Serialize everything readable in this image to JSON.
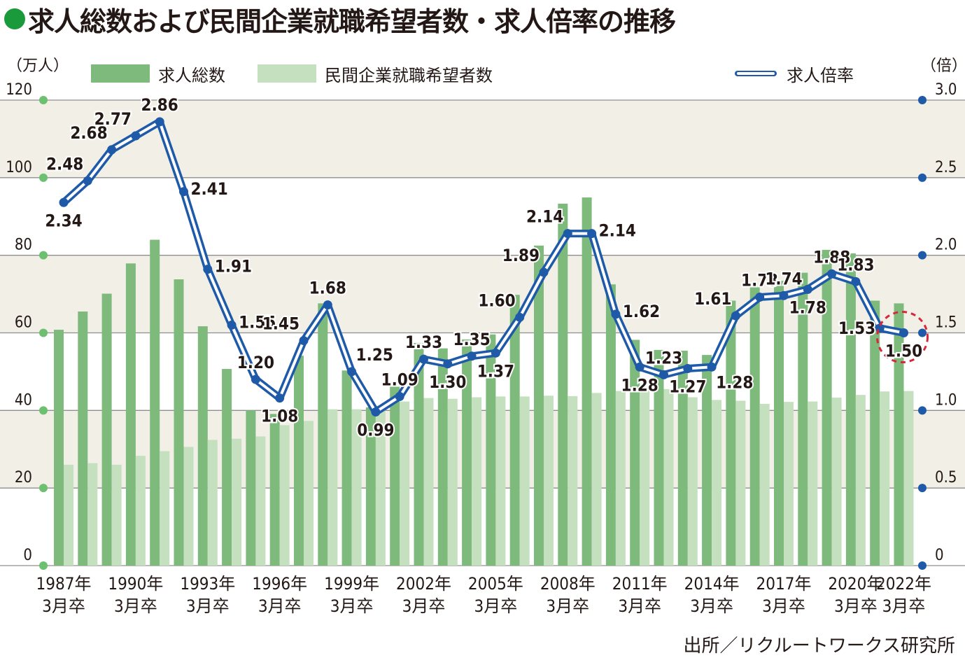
{
  "title": "求人総数および民間企業就職希望者数・求人倍率の推移",
  "unit_left": "（万人）",
  "unit_right": "（倍）",
  "legend": {
    "total": "求人総数",
    "seekers": "民間企業就職希望者数",
    "ratio": "求人倍率"
  },
  "source": "出所／リクルートワークス研究所",
  "colors": {
    "total": "#7fba7d",
    "seekers": "#c5e0bf",
    "ratio": "#1e5aa8",
    "band": "#f1efe6",
    "highlight": "#d6273b"
  },
  "chart_data": {
    "type": "bar",
    "x_tick_labels": [
      [
        "1987年",
        "3月卒"
      ],
      [
        "1990年",
        "3月卒"
      ],
      [
        "1993年",
        "3月卒"
      ],
      [
        "1996年",
        "3月卒"
      ],
      [
        "1999年",
        "3月卒"
      ],
      [
        "2002年",
        "3月卒"
      ],
      [
        "2005年",
        "3月卒"
      ],
      [
        "2008年",
        "3月卒"
      ],
      [
        "2011年",
        "3月卒"
      ],
      [
        "2014年",
        "3月卒"
      ],
      [
        "2017年",
        "3月卒"
      ],
      [
        "2020年",
        "3月卒"
      ],
      [
        "2022年",
        "3月卒"
      ]
    ],
    "years": [
      1987,
      1988,
      1989,
      1990,
      1991,
      1992,
      1993,
      1994,
      1995,
      1996,
      1997,
      1998,
      1999,
      2000,
      2001,
      2002,
      2003,
      2004,
      2005,
      2006,
      2007,
      2008,
      2009,
      2010,
      2011,
      2012,
      2013,
      2014,
      2015,
      2016,
      2017,
      2018,
      2019,
      2020,
      2021,
      2022
    ],
    "series": [
      {
        "name": "求人総数",
        "axis": "left",
        "values": [
          60.8,
          65.5,
          70.1,
          77.9,
          84.0,
          73.8,
          61.7,
          50.7,
          40.0,
          39.1,
          54.1,
          67.6,
          50.3,
          40.8,
          46.1,
          57.4,
          56.0,
          58.3,
          59.6,
          69.8,
          82.5,
          93.3,
          94.9,
          72.5,
          58.2,
          55.6,
          55.4,
          54.3,
          68.3,
          71.9,
          73.4,
          75.5,
          81.4,
          80.5,
          68.3,
          67.6
        ]
      },
      {
        "name": "民間企業就職希望者数",
        "axis": "left",
        "values": [
          26.0,
          26.4,
          26.0,
          28.3,
          29.5,
          30.6,
          32.4,
          32.7,
          33.3,
          36.2,
          37.3,
          40.3,
          40.3,
          41.2,
          42.3,
          43.2,
          43.0,
          43.4,
          43.6,
          43.6,
          43.8,
          43.7,
          44.5,
          45.0,
          45.6,
          45.5,
          43.4,
          42.7,
          42.5,
          41.7,
          42.2,
          42.3,
          43.3,
          44.0,
          44.9,
          45.0
        ]
      },
      {
        "name": "求人倍率",
        "axis": "right",
        "values": [
          2.34,
          2.48,
          2.68,
          2.77,
          2.86,
          2.41,
          1.91,
          1.55,
          1.2,
          1.08,
          1.45,
          1.68,
          1.25,
          0.99,
          1.09,
          1.33,
          1.3,
          1.35,
          1.37,
          1.6,
          1.89,
          2.14,
          2.14,
          1.62,
          1.28,
          1.23,
          1.27,
          1.28,
          1.61,
          1.73,
          1.74,
          1.78,
          1.88,
          1.83,
          1.53,
          1.5
        ]
      }
    ],
    "ratio_labels": [
      "2.34",
      "2.48",
      "2.68",
      "2.77",
      "2.86",
      "2.41",
      "1.91",
      "1.55",
      "1.20",
      "1.08",
      "1.45",
      "1.68",
      "1.25",
      "0.99",
      "1.09",
      "1.33",
      "1.30",
      "1.35",
      "1.37",
      "1.60",
      "1.89",
      "2.14",
      "2.14",
      "1.62",
      "1.28",
      "1.23",
      "1.27",
      "1.28",
      "1.61",
      "1.73",
      "1.74",
      "1.78",
      "1.88",
      "1.83",
      "1.53",
      "1.50"
    ],
    "y_left_ticks": [
      "0",
      "20",
      "40",
      "60",
      "80",
      "100",
      "120"
    ],
    "y_right_ticks": [
      "0",
      "0.5",
      "1.0",
      "1.5",
      "2.0",
      "2.5",
      "3.0"
    ],
    "ylim_left": [
      0,
      120
    ],
    "ylim_right": [
      0,
      3.0
    ],
    "highlight": "2022年3月卒 1.50"
  }
}
